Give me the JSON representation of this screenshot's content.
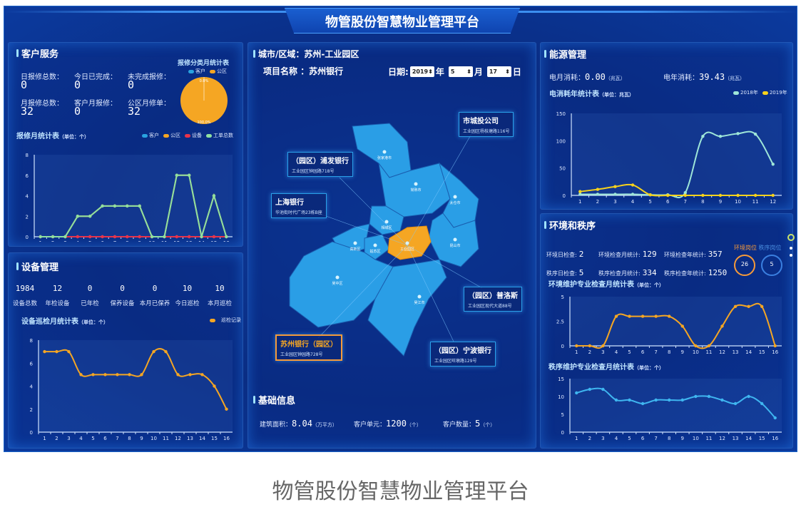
{
  "header": {
    "title": "物管股份智慧物业管理平台"
  },
  "customer_service": {
    "title": "客户服务",
    "stats": [
      {
        "label": "日报修总数：",
        "value": "0"
      },
      {
        "label": "今日已完成：",
        "value": "0"
      },
      {
        "label": "未完成报修：",
        "value": "0"
      },
      {
        "label": "月报修总数：",
        "value": "32"
      },
      {
        "label": "客户月报修：",
        "value": "0"
      },
      {
        "label": "公区月修单：",
        "value": "32"
      }
    ],
    "chart_title": "报修月统计表",
    "chart_unit": "（单位：个）"
  },
  "device": {
    "title": "设备管理",
    "stats": [
      {
        "label": "设备总数",
        "value": "1984"
      },
      {
        "label": "年检设备",
        "value": "12"
      },
      {
        "label": "已年检",
        "value": "0"
      },
      {
        "label": "保养设备",
        "value": "0"
      },
      {
        "label": "本月已保养",
        "value": "0"
      },
      {
        "label": "今日巡检",
        "value": "10"
      },
      {
        "label": "本月巡检",
        "value": "10"
      }
    ],
    "chart_title": "设备巡检月统计表",
    "chart_unit": "（单位：个）"
  },
  "center": {
    "region_label": "城市/区域：苏州-工业园区",
    "project_label": "项目名称 ：苏州银行",
    "date_label": "日期:",
    "year": "2019",
    "year_suffix": "年",
    "month": "5",
    "month_suffix": "月",
    "day": "17",
    "day_suffix": "日",
    "districts": [
      "张家港市",
      "常熟市",
      "太仓市",
      "相城区",
      "高新区",
      "姑苏区",
      "工业园区",
      "昆山市",
      "吴中区",
      "吴江市"
    ],
    "callouts": [
      {
        "name": "市城投公司",
        "address": "工业园区杨枝塘路116号"
      },
      {
        "name": "（园区）浦发银行",
        "address": "工业园区钟园路718号"
      },
      {
        "name": "上海银行",
        "address": "华池街时代广场23栋B座"
      },
      {
        "name": "（园区）普洛斯",
        "address": "工业园区现代大道88号"
      },
      {
        "name": "苏州银行（园区）",
        "address": "工业园区钟园路728号"
      },
      {
        "name": "（园区）宁波银行",
        "address": "工业园区旺墩路129号"
      }
    ],
    "highlight_color": "#f5a623",
    "base_info": {
      "title": "基础信息",
      "items": [
        {
          "label": "建筑面积：",
          "value": "8.04",
          "unit": "（万平方）"
        },
        {
          "label": "客户单元：",
          "value": "1200",
          "unit": "（个）"
        },
        {
          "label": "客户数量：",
          "value": "5",
          "unit": "（个）"
        }
      ]
    }
  },
  "energy": {
    "title": "能源管理",
    "stats": [
      {
        "label": "电月消耗：",
        "value": "0.00",
        "unit": "（兆瓦）"
      },
      {
        "label": "电年消耗：",
        "value": "39.43",
        "unit": "（兆瓦）"
      }
    ],
    "chart_title": "电消耗年统计表",
    "chart_unit": "（单位：兆瓦）"
  },
  "environment": {
    "title": "环境和秩序",
    "row1": [
      {
        "label": "环境日检查:",
        "value": "2"
      },
      {
        "label": "环境检查月统计:",
        "value": "129"
      },
      {
        "label": "环境检查年统计:",
        "value": "357"
      }
    ],
    "row2": [
      {
        "label": "秩序日检查:",
        "value": "5"
      },
      {
        "label": "秩序检查月统计:",
        "value": "334"
      },
      {
        "label": "秩序检查年统计:",
        "value": "1250"
      }
    ],
    "tab_env": "环境岗位",
    "tab_order": "秩序岗位",
    "circle_env": "26",
    "circle_order": "5",
    "chart1_title": "环境维护专业检查月统计表",
    "chart1_unit": "（单位：个）",
    "chart2_title": "秩序维护专业检查月统计表",
    "chart2_unit": "（单位：个）"
  },
  "caption": "物管股份智慧物业管理平台",
  "chart_data": [
    {
      "type": "pie",
      "title": "报修分类月统计表",
      "series": [
        {
          "name": "客户",
          "value": 0,
          "label": "0.0%",
          "color": "#29a3e0"
        },
        {
          "name": "公区",
          "value": 100,
          "label": "100.0%",
          "color": "#f5a623"
        }
      ],
      "legend": "top"
    },
    {
      "type": "line",
      "title": "报修月统计表",
      "categories": [
        "1",
        "2",
        "3",
        "4",
        "5",
        "6",
        "7",
        "8",
        "9",
        "10",
        "11",
        "12",
        "13",
        "14",
        "15",
        "16"
      ],
      "ylim": [
        0,
        8
      ],
      "yticks": [
        "0",
        "2",
        "4",
        "6",
        "8"
      ],
      "legend": "top-right",
      "series": [
        {
          "name": "客户",
          "color": "#29a3e0",
          "values": [
            0,
            0,
            0,
            0,
            0,
            0,
            0,
            0,
            0,
            0,
            0,
            0,
            0,
            0,
            0,
            0
          ]
        },
        {
          "name": "公区",
          "color": "#f5a623",
          "values": [
            0,
            0,
            0,
            2,
            2,
            3,
            3,
            3,
            3,
            0,
            0,
            6,
            6,
            0,
            4,
            0
          ]
        },
        {
          "name": "设备",
          "color": "#e8334a",
          "values": [
            0,
            0,
            0,
            0,
            0,
            0,
            0,
            0,
            0,
            0,
            0,
            0,
            0,
            0,
            0,
            0
          ]
        },
        {
          "name": "工单总数",
          "color": "#8fe0a0",
          "values": [
            0,
            0,
            0,
            2,
            2,
            3,
            3,
            3,
            3,
            0,
            0,
            6,
            6,
            0,
            4,
            0
          ]
        }
      ]
    },
    {
      "type": "line",
      "title": "设备巡检月统计表",
      "categories": [
        "1",
        "2",
        "3",
        "4",
        "5",
        "6",
        "7",
        "8",
        "9",
        "10",
        "11",
        "12",
        "13",
        "14",
        "15",
        "16"
      ],
      "ylim": [
        0,
        8
      ],
      "yticks": [
        "0",
        "2",
        "4",
        "6",
        "8"
      ],
      "legend": "top-right",
      "series": [
        {
          "name": "巡检记录",
          "color": "#f5a623",
          "values": [
            7,
            7,
            7,
            5,
            5,
            5,
            5,
            5,
            5,
            7,
            7,
            5,
            5,
            5,
            4,
            2
          ]
        }
      ]
    },
    {
      "type": "line",
      "title": "电消耗年统计表",
      "categories": [
        "1",
        "2",
        "3",
        "4",
        "5",
        "6",
        "7",
        "8",
        "9",
        "10",
        "11",
        "12"
      ],
      "ylim": [
        0,
        150
      ],
      "yticks": [
        "0",
        "50",
        "100",
        "150"
      ],
      "legend": "top-right",
      "series": [
        {
          "name": "2018年",
          "color": "#9ee6d8",
          "values": [
            2,
            2,
            2,
            2,
            1,
            1,
            5,
            108,
            108,
            113,
            112,
            57
          ]
        },
        {
          "name": "2019年",
          "color": "#f7d21c",
          "values": [
            7,
            11,
            16,
            19,
            1,
            0,
            0,
            0,
            0,
            0,
            0,
            0
          ]
        }
      ]
    },
    {
      "type": "line",
      "title": "环境维护专业检查月统计表",
      "categories": [
        "1",
        "2",
        "3",
        "4",
        "5",
        "6",
        "7",
        "8",
        "9",
        "10",
        "11",
        "12",
        "13",
        "14",
        "15",
        "16"
      ],
      "ylim": [
        0,
        5
      ],
      "yticks": [
        "0",
        "2.5",
        "5"
      ],
      "series": [
        {
          "color": "#f5a623",
          "values": [
            0,
            0,
            0,
            3,
            3,
            3,
            3,
            3,
            2,
            0,
            0,
            2,
            4,
            4,
            4,
            0
          ]
        }
      ]
    },
    {
      "type": "line",
      "title": "秩序维护专业检查月统计表",
      "categories": [
        "1",
        "2",
        "3",
        "4",
        "5",
        "6",
        "7",
        "8",
        "9",
        "10",
        "11",
        "12",
        "13",
        "14",
        "15",
        "16"
      ],
      "ylim": [
        0,
        15
      ],
      "yticks": [
        "0",
        "5",
        "10",
        "15"
      ],
      "series": [
        {
          "color": "#3fb6f0",
          "values": [
            11,
            12,
            12,
            9,
            9,
            8,
            9,
            9,
            9,
            10,
            10,
            9,
            8,
            10,
            8,
            4
          ]
        }
      ]
    }
  ]
}
